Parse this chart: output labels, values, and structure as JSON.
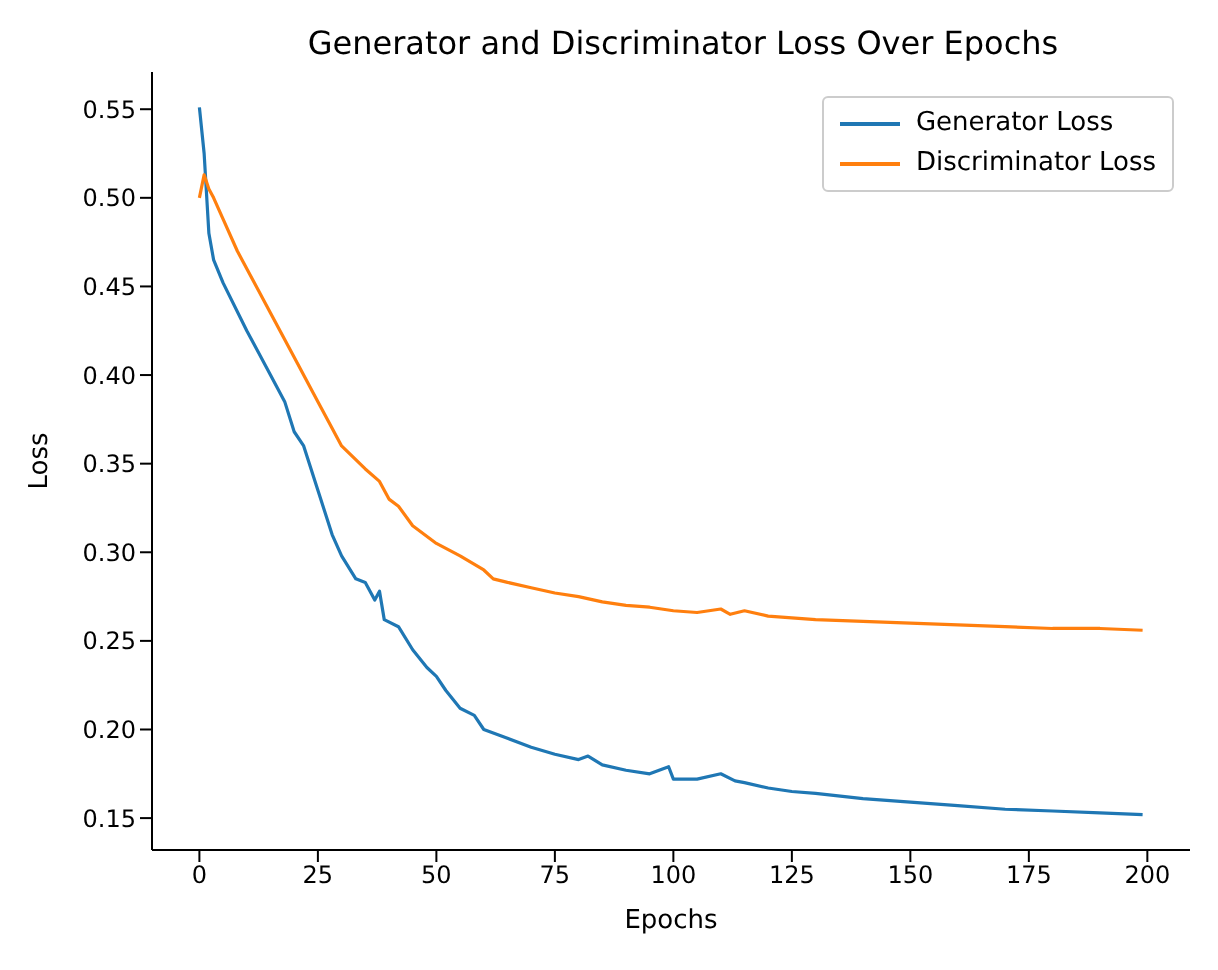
{
  "chart_data": {
    "type": "line",
    "title": "Generator and Discriminator Loss Over Epochs",
    "xlabel": "Epochs",
    "ylabel": "Loss",
    "xlim": [
      -10,
      209
    ],
    "xticks": [
      0,
      25,
      50,
      75,
      100,
      125,
      150,
      175,
      200
    ],
    "ylim": [
      0.132,
      0.571
    ],
    "yticks": [
      0.15,
      {
        "value": 0.2,
        "label": "0.20"
      },
      0.25,
      {
        "value": 0.3,
        "label": "0.30"
      },
      0.35,
      {
        "value": 0.4,
        "label": "0.40"
      },
      0.45,
      {
        "value": 0.5,
        "label": "0.50"
      },
      0.55
    ],
    "grid": false,
    "legend": "top right",
    "line_style": "solid",
    "marker": "none",
    "series": [
      {
        "name": "Generator Loss",
        "color": "#1f77b4",
        "x": [
          0,
          1,
          2,
          3,
          5,
          10,
          15,
          18,
          20,
          22,
          25,
          28,
          30,
          33,
          35,
          37,
          38,
          39,
          42,
          45,
          48,
          50,
          52,
          55,
          58,
          60,
          65,
          70,
          75,
          80,
          82,
          85,
          90,
          95,
          99,
          100,
          105,
          110,
          113,
          115,
          120,
          125,
          130,
          140,
          150,
          160,
          170,
          180,
          190,
          199
        ],
        "values": [
          0.551,
          0.525,
          0.48,
          0.465,
          0.452,
          0.425,
          0.4,
          0.385,
          0.368,
          0.36,
          0.335,
          0.31,
          0.298,
          0.285,
          0.283,
          0.273,
          0.278,
          0.262,
          0.258,
          0.245,
          0.235,
          0.23,
          0.222,
          0.212,
          0.208,
          0.2,
          0.195,
          0.19,
          0.186,
          0.183,
          0.185,
          0.18,
          0.177,
          0.175,
          0.179,
          0.172,
          0.172,
          0.175,
          0.171,
          0.17,
          0.167,
          0.165,
          0.164,
          0.161,
          0.159,
          0.157,
          0.155,
          0.154,
          0.153,
          0.152
        ]
      },
      {
        "name": "Discriminator Loss",
        "color": "#ff7f0e",
        "x": [
          0,
          1,
          2,
          3,
          5,
          8,
          10,
          15,
          20,
          25,
          28,
          30,
          35,
          38,
          40,
          42,
          45,
          50,
          55,
          60,
          62,
          65,
          70,
          75,
          80,
          85,
          90,
          95,
          100,
          105,
          110,
          112,
          115,
          120,
          130,
          140,
          150,
          160,
          170,
          180,
          190,
          199
        ],
        "values": [
          0.5,
          0.513,
          0.505,
          0.5,
          0.488,
          0.47,
          0.46,
          0.435,
          0.41,
          0.385,
          0.37,
          0.36,
          0.347,
          0.34,
          0.33,
          0.326,
          0.315,
          0.305,
          0.298,
          0.29,
          0.285,
          0.283,
          0.28,
          0.277,
          0.275,
          0.272,
          0.27,
          0.269,
          0.267,
          0.266,
          0.268,
          0.265,
          0.267,
          0.264,
          0.262,
          0.261,
          0.26,
          0.259,
          0.258,
          0.257,
          0.257,
          0.256
        ]
      }
    ]
  }
}
